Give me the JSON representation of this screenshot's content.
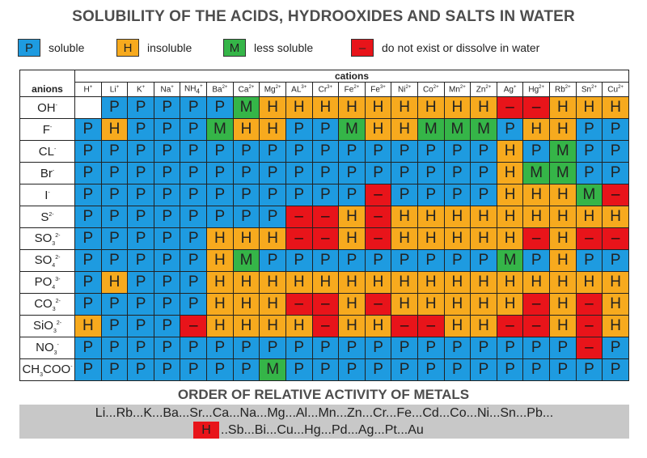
{
  "title": "SOLUBILITY OF THE ACIDS, HYDROOXIDES AND SALTS IN WATER",
  "legend": [
    {
      "symbol": "P",
      "label": "soluble",
      "color": "#1e9be0"
    },
    {
      "symbol": "H",
      "label": "insoluble",
      "color": "#f7aa1e"
    },
    {
      "symbol": "M",
      "label": "less soluble",
      "color": "#35b548"
    },
    {
      "symbol": "–",
      "label": "do not exist or dissolve in water",
      "color": "#e8141a"
    }
  ],
  "table": {
    "cations_header": "cations",
    "anions_header": "anions",
    "cations": [
      {
        "base": "H",
        "charge": "+"
      },
      {
        "base": "Li",
        "charge": "+"
      },
      {
        "base": "K",
        "charge": "+"
      },
      {
        "base": "Na",
        "charge": "+"
      },
      {
        "base": "NH",
        "sub": "4",
        "charge": "+"
      },
      {
        "base": "Ba",
        "charge": "2+"
      },
      {
        "base": "Ca",
        "charge": "2+"
      },
      {
        "base": "Mg",
        "charge": "2+"
      },
      {
        "base": "AL",
        "charge": "3+"
      },
      {
        "base": "Cr",
        "charge": "3+"
      },
      {
        "base": "Fe",
        "charge": "2+"
      },
      {
        "base": "Fe",
        "charge": "3+"
      },
      {
        "base": "Ni",
        "charge": "2+"
      },
      {
        "base": "Co",
        "charge": "2+"
      },
      {
        "base": "Mn",
        "charge": "2+"
      },
      {
        "base": "Zn",
        "charge": "2+"
      },
      {
        "base": "Ag",
        "charge": "+"
      },
      {
        "base": "Hg",
        "charge": "2+"
      },
      {
        "base": "Rb",
        "charge": "2+"
      },
      {
        "base": "Sn",
        "charge": "2+"
      },
      {
        "base": "Cu",
        "charge": "2+"
      }
    ],
    "rows": [
      {
        "anion": {
          "base": "OH",
          "charge": "-"
        },
        "cells": [
          "",
          "P",
          "P",
          "P",
          "P",
          "P",
          "M",
          "H",
          "H",
          "H",
          "H",
          "H",
          "H",
          "H",
          "H",
          "H",
          "–",
          "–",
          "H",
          "H",
          "H"
        ]
      },
      {
        "anion": {
          "base": "F",
          "charge": "-"
        },
        "cells": [
          "P",
          "H",
          "P",
          "P",
          "P",
          "M",
          "H",
          "H",
          "P",
          "P",
          "M",
          "H",
          "H",
          "M",
          "M",
          "M",
          "P",
          "H",
          "H",
          "P",
          "P"
        ]
      },
      {
        "anion": {
          "base": "CL",
          "charge": "-"
        },
        "cells": [
          "P",
          "P",
          "P",
          "P",
          "P",
          "P",
          "P",
          "P",
          "P",
          "P",
          "P",
          "P",
          "P",
          "P",
          "P",
          "P",
          "H",
          "P",
          "M",
          "P",
          "P"
        ]
      },
      {
        "anion": {
          "base": "Br",
          "charge": "-"
        },
        "cells": [
          "P",
          "P",
          "P",
          "P",
          "P",
          "P",
          "P",
          "P",
          "P",
          "P",
          "P",
          "P",
          "P",
          "P",
          "P",
          "P",
          "H",
          "M",
          "M",
          "P",
          "P"
        ]
      },
      {
        "anion": {
          "base": "I",
          "charge": "-"
        },
        "cells": [
          "P",
          "P",
          "P",
          "P",
          "P",
          "P",
          "P",
          "P",
          "P",
          "P",
          "P",
          "–",
          "P",
          "P",
          "P",
          "P",
          "H",
          "H",
          "H",
          "M",
          "–"
        ]
      },
      {
        "anion": {
          "base": "S",
          "charge": "2-"
        },
        "cells": [
          "P",
          "P",
          "P",
          "P",
          "P",
          "P",
          "P",
          "P",
          "–",
          "–",
          "H",
          "–",
          "H",
          "H",
          "H",
          "H",
          "H",
          "H",
          "H",
          "H",
          "H"
        ]
      },
      {
        "anion": {
          "base": "SO",
          "sub": "3",
          "charge": "2-"
        },
        "cells": [
          "P",
          "P",
          "P",
          "P",
          "P",
          "H",
          "H",
          "H",
          "–",
          "–",
          "H",
          "–",
          "H",
          "H",
          "H",
          "H",
          "H",
          "–",
          "H",
          "–",
          "–"
        ]
      },
      {
        "anion": {
          "base": "SO",
          "sub": "4",
          "charge": "2-"
        },
        "cells": [
          "P",
          "P",
          "P",
          "P",
          "P",
          "H",
          "M",
          "P",
          "P",
          "P",
          "P",
          "P",
          "P",
          "P",
          "P",
          "P",
          "M",
          "P",
          "H",
          "P",
          "P"
        ]
      },
      {
        "anion": {
          "base": "PO",
          "sub": "4",
          "charge": "3-"
        },
        "cells": [
          "P",
          "H",
          "P",
          "P",
          "P",
          "H",
          "H",
          "H",
          "H",
          "H",
          "H",
          "H",
          "H",
          "H",
          "H",
          "H",
          "H",
          "H",
          "H",
          "H",
          "H"
        ]
      },
      {
        "anion": {
          "base": "CO",
          "sub": "3",
          "charge": "2-"
        },
        "cells": [
          "P",
          "P",
          "P",
          "P",
          "P",
          "H",
          "H",
          "H",
          "–",
          "–",
          "H",
          "–",
          "H",
          "H",
          "H",
          "H",
          "H",
          "–",
          "H",
          "–",
          "H"
        ]
      },
      {
        "anion": {
          "base": "SiO",
          "sub": "3",
          "charge": "2-"
        },
        "cells": [
          "H",
          "P",
          "P",
          "P",
          "–",
          "H",
          "H",
          "H",
          "H",
          "–",
          "H",
          "H",
          "–",
          "–",
          "H",
          "H",
          "–",
          "–",
          "H",
          "–",
          "H"
        ]
      },
      {
        "anion": {
          "base": "NO",
          "sub": "3",
          "charge": "-"
        },
        "cells": [
          "P",
          "P",
          "P",
          "P",
          "P",
          "P",
          "P",
          "P",
          "P",
          "P",
          "P",
          "P",
          "P",
          "P",
          "P",
          "P",
          "P",
          "P",
          "P",
          "–",
          "P"
        ]
      },
      {
        "anion": {
          "base": "CH",
          "sub": "3",
          "base2": "COO",
          "charge": "-"
        },
        "cells": [
          "P",
          "P",
          "P",
          "P",
          "P",
          "P",
          "P",
          "M",
          "P",
          "P",
          "P",
          "P",
          "P",
          "P",
          "P",
          "P",
          "P",
          "P",
          "P",
          "P",
          "P"
        ]
      }
    ]
  },
  "order": {
    "title": "ORDER OF RELATIVE ACTIVITY OF METALS",
    "line1": "Li...Rb...K...Ba...Sr...Ca...Na...Mg...Al...Mn...Zn...Cr...Fe...Cd...Co...Ni...Sn...Pb...",
    "h_label": "H",
    "line2": "..Sb...Bi...Cu...Hg...Pd...Ag...Pt...Au"
  }
}
